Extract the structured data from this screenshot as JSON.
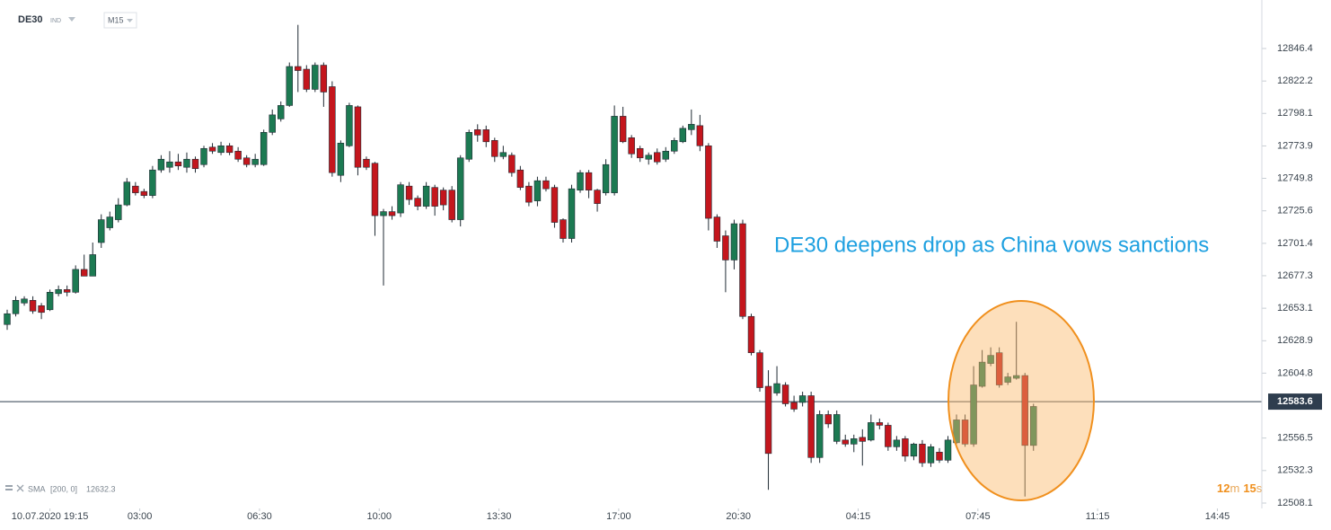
{
  "header": {
    "symbol": "DE30",
    "market": "IND",
    "interval": "M15"
  },
  "indicator": {
    "name": "SMA",
    "params": "[200, 0]",
    "value": 12632.3
  },
  "countdown": {
    "minutes": "12",
    "minutes_unit": "m",
    "seconds": "15",
    "seconds_unit": "s"
  },
  "chart_data": {
    "type": "candlestick",
    "annotation": "DE30 deepens drop as China vows sanctions",
    "up_color": "#1c7a52",
    "down_color": "#c4161d",
    "last_price": 12583.6,
    "xlim": [
      -0.84,
      146.7
    ],
    "xticks": [
      {
        "value": 5,
        "label": "10.07.2020 19:15"
      },
      {
        "value": 15.5,
        "label": "03:00"
      },
      {
        "value": 29.5,
        "label": "06:30"
      },
      {
        "value": 43.5,
        "label": "10:00"
      },
      {
        "value": 57.5,
        "label": "13:30"
      },
      {
        "value": 71.5,
        "label": "17:00"
      },
      {
        "value": 85.5,
        "label": "20:30"
      },
      {
        "value": 99.5,
        "label": "04:15"
      },
      {
        "value": 113.5,
        "label": "07:45"
      },
      {
        "value": 127.5,
        "label": "11:15"
      },
      {
        "value": 141.5,
        "label": "14:45"
      }
    ],
    "ylim": [
      12504.1,
      12882.5
    ],
    "yticks": [
      12846.4,
      12822.2,
      12798.1,
      12773.9,
      12749.8,
      12725.6,
      12701.4,
      12677.3,
      12653.1,
      12628.9,
      12604.8,
      12556.5,
      12532.3,
      12508.1
    ],
    "open": [
      12641,
      12649,
      12657,
      12659,
      12655,
      12652,
      12664,
      12667,
      12665,
      12682,
      12677,
      12702,
      12713,
      12719,
      12730,
      12744,
      12740,
      12737,
      12756,
      12758,
      12762,
      12758,
      12764,
      12760,
      12773,
      12769,
      12774,
      12770,
      12765,
      12760,
      12760,
      12784,
      12794,
      12804,
      12833,
      12831,
      12816,
      12834,
      12818,
      12752,
      12774,
      12803,
      12764,
      12761,
      12722,
      12725,
      12724,
      12744,
      12735,
      12729,
      12743,
      12741,
      12741,
      12719,
      12764,
      12786,
      12786,
      12778,
      12766,
      12767,
      12756,
      12744,
      12733,
      12748,
      12743,
      12719,
      12705,
      12741,
      12754,
      12741,
      12739,
      12739,
      12796,
      12780,
      12772,
      12764,
      12769,
      12764,
      12770,
      12777,
      12786,
      12789,
      12774,
      12721,
      12707,
      12689,
      12716,
      12647,
      12620,
      12595,
      12590,
      12596,
      12583,
      12583,
      12588,
      12542,
      12574,
      12554,
      12555,
      12552,
      12557,
      12555,
      12568,
      12566,
      12550,
      12556,
      12543,
      12552,
      12538,
      12546,
      12540,
      12553,
      12570,
      12552,
      12595,
      12612,
      12620,
      12598,
      12601,
      12603,
      12551
    ],
    "high": [
      12652,
      12662,
      12662,
      12662,
      12657,
      12667,
      12670,
      12670,
      12685,
      12693,
      12702,
      12723,
      12725,
      12735,
      12750,
      12747,
      12742,
      12759,
      12767,
      12770,
      12768,
      12769,
      12766,
      12774,
      12776,
      12777,
      12776,
      12773,
      12767,
      12768,
      12786,
      12801,
      12807,
      12836,
      12864,
      12834,
      12836,
      12836,
      12822,
      12778,
      12806,
      12804,
      12766,
      12762,
      12727,
      12729,
      12747,
      12747,
      12737,
      12747,
      12745,
      12743,
      12744,
      12767,
      12786,
      12790,
      12789,
      12780,
      12774,
      12769,
      12759,
      12747,
      12751,
      12751,
      12745,
      12720,
      12745,
      12756,
      12756,
      12742,
      12764,
      12804,
      12803,
      12782,
      12774,
      12769,
      12772,
      12773,
      12780,
      12789,
      12801,
      12797,
      12776,
      12723,
      12711,
      12719,
      12719,
      12649,
      12622,
      12607,
      12610,
      12598,
      12588,
      12591,
      12591,
      12577,
      12577,
      12577,
      12559,
      12559,
      12563,
      12574,
      12571,
      12568,
      12558,
      12558,
      12553,
      12555,
      12552,
      12549,
      12558,
      12574,
      12574,
      12610,
      12622,
      12624,
      12624,
      12605,
      12643,
      12605,
      12582
    ],
    "low": [
      12637,
      12647,
      12655,
      12649,
      12645,
      12651,
      12662,
      12662,
      12664,
      12677,
      12677,
      12698,
      12711,
      12717,
      12729,
      12737,
      12735,
      12735,
      12754,
      12754,
      12756,
      12754,
      12754,
      12758,
      12768,
      12767,
      12767,
      12762,
      12758,
      12758,
      12759,
      12782,
      12792,
      12803,
      12814,
      12814,
      12814,
      12803,
      12751,
      12747,
      12773,
      12752,
      12756,
      12707,
      12670,
      12719,
      12721,
      12730,
      12726,
      12727,
      12722,
      12726,
      12717,
      12714,
      12762,
      12777,
      12773,
      12762,
      12764,
      12751,
      12741,
      12729,
      12729,
      12740,
      12713,
      12702,
      12702,
      12739,
      12735,
      12725,
      12737,
      12737,
      12776,
      12765,
      12762,
      12760,
      12760,
      12762,
      12768,
      12776,
      12782,
      12770,
      12711,
      12698,
      12665,
      12682,
      12645,
      12618,
      12591,
      12518,
      12588,
      12580,
      12576,
      12580,
      12538,
      12538,
      12564,
      12552,
      12550,
      12546,
      12536,
      12554,
      12563,
      12547,
      12547,
      12539,
      12540,
      12535,
      12535,
      12538,
      12538,
      12552,
      12550,
      12550,
      12594,
      12610,
      12594,
      12596,
      12600,
      12513,
      12547
    ],
    "close": [
      12649,
      12659,
      12660,
      12651,
      12650,
      12665,
      12667,
      12665,
      12682,
      12677,
      12693,
      12719,
      12721,
      12730,
      12747,
      12739,
      12737,
      12756,
      12764,
      12762,
      12759,
      12764,
      12757,
      12772,
      12770,
      12774,
      12769,
      12764,
      12760,
      12764,
      12784,
      12797,
      12804,
      12833,
      12830,
      12816,
      12834,
      12814,
      12754,
      12776,
      12804,
      12758,
      12758,
      12722,
      12725,
      12722,
      12745,
      12734,
      12729,
      12744,
      12729,
      12730,
      12719,
      12765,
      12784,
      12782,
      12777,
      12766,
      12769,
      12754,
      12743,
      12732,
      12748,
      12742,
      12717,
      12705,
      12742,
      12754,
      12741,
      12731,
      12760,
      12796,
      12777,
      12768,
      12765,
      12767,
      12762,
      12770,
      12778,
      12787,
      12790,
      12774,
      12720,
      12703,
      12689,
      12716,
      12647,
      12620,
      12594,
      12545,
      12597,
      12582,
      12578,
      12588,
      12542,
      12574,
      12567,
      12574,
      12552,
      12556,
      12554,
      12568,
      12566,
      12550,
      12555,
      12543,
      12552,
      12538,
      12550,
      12540,
      12555,
      12570,
      12552,
      12596,
      12613,
      12618,
      12596,
      12602,
      12603,
      12551,
      12580
    ]
  }
}
